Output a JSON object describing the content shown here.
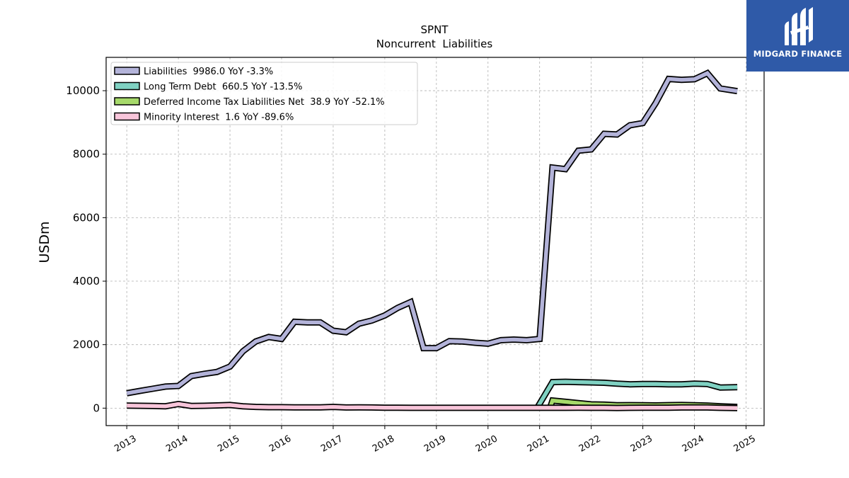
{
  "chart_data": {
    "type": "line",
    "title": "SPNT",
    "subtitle": "Noncurrent  Liabilities",
    "ylabel": "USDm",
    "xlabel": "",
    "xlim": [
      2012.6,
      2025.35
    ],
    "ylim": [
      -550,
      11050
    ],
    "xticks": [
      2013,
      2014,
      2015,
      2016,
      2017,
      2018,
      2019,
      2020,
      2021,
      2022,
      2023,
      2024,
      2025
    ],
    "yticks": [
      0,
      2000,
      4000,
      6000,
      8000,
      10000
    ],
    "grid": true,
    "legend_position": "top-left",
    "series": [
      {
        "name": "Liabilities  9986.0 YoY -3.3%",
        "color": "#b3b3d9",
        "x": [
          2013.0,
          2013.25,
          2013.5,
          2013.75,
          2014.0,
          2014.25,
          2014.5,
          2014.75,
          2015.0,
          2015.25,
          2015.5,
          2015.75,
          2016.0,
          2016.25,
          2016.5,
          2016.75,
          2017.0,
          2017.25,
          2017.5,
          2017.75,
          2018.0,
          2018.25,
          2018.5,
          2018.75,
          2019.0,
          2019.25,
          2019.5,
          2019.75,
          2020.0,
          2020.25,
          2020.5,
          2020.75,
          2021.0,
          2021.25,
          2021.5,
          2021.75,
          2022.0,
          2022.25,
          2022.5,
          2022.75,
          2023.0,
          2023.25,
          2023.5,
          2023.75,
          2024.0,
          2024.25,
          2024.5,
          2024.83
        ],
        "y": [
          470,
          540,
          610,
          680,
          700,
          1010,
          1080,
          1140,
          1310,
          1790,
          2100,
          2240,
          2180,
          2720,
          2700,
          2700,
          2440,
          2390,
          2660,
          2760,
          2920,
          3160,
          3340,
          1890,
          1890,
          2110,
          2100,
          2060,
          2030,
          2140,
          2160,
          2140,
          2180,
          7580,
          7530,
          8110,
          8150,
          8640,
          8620,
          8910,
          8980,
          9610,
          10370,
          10340,
          10360,
          10550,
          10070,
          9986
        ]
      },
      {
        "name": "Long Term Debt  660.5 YoY -13.5%",
        "color": "#7fd1c2",
        "x": [
          2020.95,
          2021.25,
          2021.5,
          2021.75,
          2022.0,
          2022.25,
          2022.5,
          2022.75,
          2023.0,
          2023.25,
          2023.5,
          2023.75,
          2024.0,
          2024.25,
          2024.5,
          2024.83
        ],
        "y": [
          0,
          820,
          830,
          820,
          810,
          800,
          770,
          750,
          760,
          760,
          750,
          750,
          770,
          760,
          650,
          660
        ]
      },
      {
        "name": "Deferred Income Tax Liabilities Net  38.9 YoY -52.1%",
        "color": "#a6d96a",
        "x": [
          2021.2,
          2021.25,
          2021.5,
          2021.75,
          2022.0,
          2022.25,
          2022.5,
          2022.75,
          2023.0,
          2023.25,
          2023.5,
          2023.75,
          2024.0,
          2024.25,
          2024.5,
          2024.83
        ],
        "y": [
          0,
          240,
          200,
          160,
          120,
          110,
          90,
          95,
          90,
          85,
          95,
          100,
          90,
          80,
          60,
          39
        ]
      },
      {
        "name": "Minority Interest  1.6 YoY -89.6%",
        "color": "#f8c5da",
        "x": [
          2013.0,
          2013.25,
          2013.5,
          2013.75,
          2014.0,
          2014.25,
          2014.5,
          2014.75,
          2015.0,
          2015.25,
          2015.5,
          2015.75,
          2016.0,
          2016.25,
          2016.5,
          2016.75,
          2017.0,
          2017.25,
          2017.5,
          2017.75,
          2018.0,
          2018.25,
          2018.5,
          2018.75,
          2019.0,
          2019.25,
          2019.5,
          2019.75,
          2020.0,
          2020.25,
          2020.5,
          2020.75,
          2021.0,
          2021.25,
          2021.5,
          2021.75,
          2022.0,
          2022.25,
          2022.5,
          2022.75,
          2023.0,
          2023.25,
          2023.5,
          2023.75,
          2024.0,
          2024.25,
          2024.5,
          2024.83
        ],
        "y": [
          80,
          75,
          70,
          60,
          130,
          70,
          75,
          85,
          100,
          60,
          40,
          30,
          30,
          25,
          25,
          25,
          40,
          20,
          25,
          20,
          15,
          15,
          10,
          10,
          10,
          10,
          10,
          10,
          10,
          10,
          10,
          10,
          10,
          10,
          10,
          15,
          10,
          10,
          5,
          10,
          15,
          15,
          15,
          20,
          20,
          20,
          10,
          1.6
        ]
      }
    ]
  },
  "logo": {
    "text": "MIDGARD FINANCE",
    "background": "#2f5aa8"
  }
}
